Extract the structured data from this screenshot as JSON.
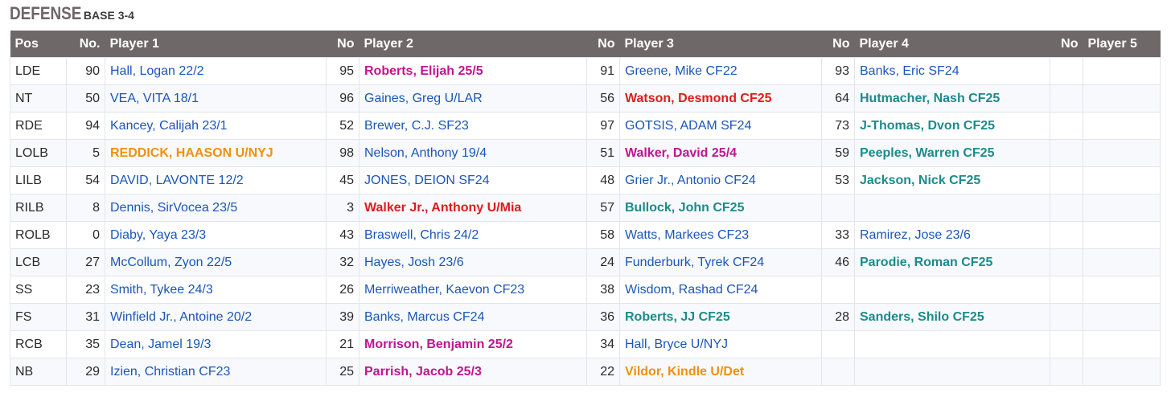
{
  "heading": {
    "title": "DEFENSE",
    "subtitle": "BASE 3-4"
  },
  "colors": {
    "blue": "#1a56b8",
    "magenta": "#c0158f",
    "red": "#e01b1b",
    "teal": "#1b8b8b",
    "orange": "#f0900e",
    "header_bg": "#6f6869"
  },
  "columns": [
    "Pos",
    "No.",
    "Player 1",
    "No",
    "Player 2",
    "No",
    "Player 3",
    "No",
    "Player 4",
    "No",
    "Player 5"
  ],
  "rows": [
    {
      "pos": "LDE",
      "players": [
        {
          "no": "90",
          "name": "Hall, Logan 22/2",
          "color": "blue"
        },
        {
          "no": "95",
          "name": "Roberts, Elijah 25/5",
          "color": "magenta"
        },
        {
          "no": "91",
          "name": "Greene, Mike CF22",
          "color": "blue"
        },
        {
          "no": "93",
          "name": "Banks, Eric SF24",
          "color": "blue"
        },
        {
          "no": "",
          "name": "",
          "color": "blue"
        }
      ]
    },
    {
      "pos": "NT",
      "players": [
        {
          "no": "50",
          "name": "VEA, VITA 18/1",
          "color": "blue"
        },
        {
          "no": "96",
          "name": "Gaines, Greg U/LAR",
          "color": "blue"
        },
        {
          "no": "56",
          "name": "Watson, Desmond CF25",
          "color": "red"
        },
        {
          "no": "64",
          "name": "Hutmacher, Nash CF25",
          "color": "teal"
        },
        {
          "no": "",
          "name": "",
          "color": "blue"
        }
      ]
    },
    {
      "pos": "RDE",
      "players": [
        {
          "no": "94",
          "name": "Kancey, Calijah 23/1",
          "color": "blue"
        },
        {
          "no": "52",
          "name": "Brewer, C.J. SF23",
          "color": "blue"
        },
        {
          "no": "97",
          "name": "GOTSIS, ADAM SF24",
          "color": "blue"
        },
        {
          "no": "73",
          "name": "J-Thomas, Dvon CF25",
          "color": "teal"
        },
        {
          "no": "",
          "name": "",
          "color": "blue"
        }
      ]
    },
    {
      "pos": "LOLB",
      "players": [
        {
          "no": "5",
          "name": "REDDICK, HAASON U/NYJ",
          "color": "orange"
        },
        {
          "no": "98",
          "name": "Nelson, Anthony 19/4",
          "color": "blue"
        },
        {
          "no": "51",
          "name": "Walker, David 25/4",
          "color": "magenta"
        },
        {
          "no": "59",
          "name": "Peeples, Warren CF25",
          "color": "teal"
        },
        {
          "no": "",
          "name": "",
          "color": "blue"
        }
      ]
    },
    {
      "pos": "LILB",
      "players": [
        {
          "no": "54",
          "name": "DAVID, LAVONTE 12/2",
          "color": "blue"
        },
        {
          "no": "45",
          "name": "JONES, DEION SF24",
          "color": "blue"
        },
        {
          "no": "48",
          "name": "Grier Jr., Antonio CF24",
          "color": "blue"
        },
        {
          "no": "53",
          "name": "Jackson, Nick CF25",
          "color": "teal"
        },
        {
          "no": "",
          "name": "",
          "color": "blue"
        }
      ]
    },
    {
      "pos": "RILB",
      "players": [
        {
          "no": "8",
          "name": "Dennis, SirVocea 23/5",
          "color": "blue"
        },
        {
          "no": "3",
          "name": "Walker Jr., Anthony U/Mia",
          "color": "red"
        },
        {
          "no": "57",
          "name": "Bullock, John CF25",
          "color": "teal"
        },
        {
          "no": "",
          "name": "",
          "color": "blue"
        },
        {
          "no": "",
          "name": "",
          "color": "blue"
        }
      ]
    },
    {
      "pos": "ROLB",
      "players": [
        {
          "no": "0",
          "name": "Diaby, Yaya 23/3",
          "color": "blue"
        },
        {
          "no": "43",
          "name": "Braswell, Chris 24/2",
          "color": "blue"
        },
        {
          "no": "58",
          "name": "Watts, Markees CF23",
          "color": "blue"
        },
        {
          "no": "33",
          "name": "Ramirez, Jose 23/6",
          "color": "blue"
        },
        {
          "no": "",
          "name": "",
          "color": "blue"
        }
      ]
    },
    {
      "pos": "LCB",
      "players": [
        {
          "no": "27",
          "name": "McCollum, Zyon 22/5",
          "color": "blue"
        },
        {
          "no": "32",
          "name": "Hayes, Josh 23/6",
          "color": "blue"
        },
        {
          "no": "24",
          "name": "Funderburk, Tyrek CF24",
          "color": "blue"
        },
        {
          "no": "46",
          "name": "Parodie, Roman CF25",
          "color": "teal"
        },
        {
          "no": "",
          "name": "",
          "color": "blue"
        }
      ]
    },
    {
      "pos": "SS",
      "players": [
        {
          "no": "23",
          "name": "Smith, Tykee 24/3",
          "color": "blue"
        },
        {
          "no": "26",
          "name": "Merriweather, Kaevon CF23",
          "color": "blue"
        },
        {
          "no": "38",
          "name": "Wisdom, Rashad CF24",
          "color": "blue"
        },
        {
          "no": "",
          "name": "",
          "color": "blue"
        },
        {
          "no": "",
          "name": "",
          "color": "blue"
        }
      ]
    },
    {
      "pos": "FS",
      "players": [
        {
          "no": "31",
          "name": "Winfield Jr., Antoine 20/2",
          "color": "blue"
        },
        {
          "no": "39",
          "name": "Banks, Marcus CF24",
          "color": "blue"
        },
        {
          "no": "36",
          "name": "Roberts, JJ CF25",
          "color": "teal"
        },
        {
          "no": "28",
          "name": "Sanders, Shilo CF25",
          "color": "teal"
        },
        {
          "no": "",
          "name": "",
          "color": "blue"
        }
      ]
    },
    {
      "pos": "RCB",
      "players": [
        {
          "no": "35",
          "name": "Dean, Jamel 19/3",
          "color": "blue"
        },
        {
          "no": "21",
          "name": "Morrison, Benjamin 25/2",
          "color": "magenta"
        },
        {
          "no": "34",
          "name": "Hall, Bryce U/NYJ",
          "color": "blue"
        },
        {
          "no": "",
          "name": "",
          "color": "blue"
        },
        {
          "no": "",
          "name": "",
          "color": "blue"
        }
      ]
    },
    {
      "pos": "NB",
      "players": [
        {
          "no": "29",
          "name": "Izien, Christian CF23",
          "color": "blue"
        },
        {
          "no": "25",
          "name": "Parrish, Jacob 25/3",
          "color": "magenta"
        },
        {
          "no": "22",
          "name": "Vildor, Kindle U/Det",
          "color": "orange"
        },
        {
          "no": "",
          "name": "",
          "color": "blue"
        },
        {
          "no": "",
          "name": "",
          "color": "blue"
        }
      ]
    }
  ]
}
